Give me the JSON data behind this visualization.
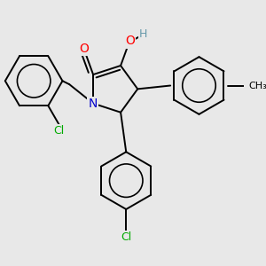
{
  "background_color": "#e8e8e8",
  "figsize": [
    3.0,
    3.0
  ],
  "dpi": 100,
  "colors": {
    "N": "#0000cc",
    "O": "#ff0000",
    "Cl": "#00aa00",
    "H": "#6699aa",
    "C": "#000000",
    "bond": "#000000"
  },
  "bond_lw": 1.4,
  "ring_r": 0.42,
  "font_size": 8.5
}
